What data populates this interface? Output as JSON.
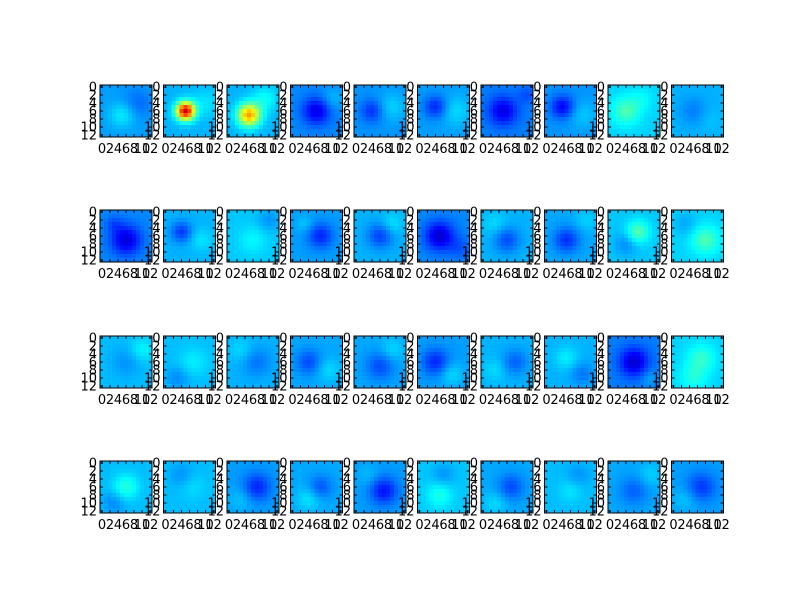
{
  "chart_data": {
    "type": "heatmap",
    "layout": {
      "rows": 4,
      "cols": 10
    },
    "colormap": "jet",
    "value_range": [
      0,
      1
    ],
    "image_shape": [
      13,
      13
    ],
    "x_ticks": [
      "0",
      "2",
      "4",
      "6",
      "8",
      "10",
      "12"
    ],
    "y_ticks": [
      "0",
      "2",
      "4",
      "6",
      "8",
      "10",
      "12"
    ],
    "grid": false,
    "tiles": [
      {
        "base": 0.28,
        "blobs": [
          [
            7,
            5,
            2.2,
            0.08
          ],
          [
            4,
            9,
            2.6,
            -0.05
          ]
        ]
      },
      {
        "base": 0.3,
        "blobs": [
          [
            6,
            5,
            1.6,
            0.62
          ],
          [
            4,
            10,
            2.5,
            0.05
          ]
        ]
      },
      {
        "base": 0.3,
        "blobs": [
          [
            7,
            5,
            2.0,
            0.42
          ],
          [
            3,
            9,
            2.2,
            0.08
          ]
        ]
      },
      {
        "base": 0.26,
        "blobs": [
          [
            6,
            6,
            2.4,
            -0.16
          ],
          [
            3,
            10,
            2.0,
            0.05
          ]
        ]
      },
      {
        "base": 0.27,
        "blobs": [
          [
            6,
            4,
            2.0,
            -0.1
          ],
          [
            5,
            9,
            2.5,
            0.06
          ]
        ]
      },
      {
        "base": 0.28,
        "blobs": [
          [
            5,
            4,
            2.0,
            -0.12
          ],
          [
            6,
            9,
            2.5,
            0.06
          ]
        ]
      },
      {
        "base": 0.25,
        "blobs": [
          [
            6,
            5,
            2.5,
            -0.15
          ],
          [
            2,
            11,
            1.5,
            -0.05
          ]
        ]
      },
      {
        "base": 0.27,
        "blobs": [
          [
            5,
            4,
            2.0,
            -0.15
          ],
          [
            7,
            9,
            2.5,
            0.05
          ]
        ]
      },
      {
        "base": 0.33,
        "blobs": [
          [
            6,
            4,
            2.5,
            0.12
          ],
          [
            3,
            8,
            2.0,
            0.04
          ]
        ]
      },
      {
        "base": 0.3,
        "blobs": [
          [
            6,
            5,
            2.5,
            -0.05
          ],
          [
            8,
            9,
            2.0,
            0.02
          ]
        ]
      },
      {
        "base": 0.26,
        "blobs": [
          [
            7,
            6,
            2.6,
            -0.17
          ],
          [
            3,
            3,
            1.5,
            -0.05
          ]
        ]
      },
      {
        "base": 0.3,
        "blobs": [
          [
            5,
            4,
            1.8,
            -0.12
          ],
          [
            7,
            9,
            2.0,
            0.05
          ]
        ]
      },
      {
        "base": 0.32,
        "blobs": [
          [
            7,
            6,
            2.5,
            0.05
          ],
          [
            2,
            10,
            2.0,
            -0.05
          ]
        ]
      },
      {
        "base": 0.28,
        "blobs": [
          [
            6,
            7,
            2.2,
            -0.12
          ],
          [
            3,
            3,
            1.5,
            0.04
          ]
        ]
      },
      {
        "base": 0.3,
        "blobs": [
          [
            6,
            6,
            2.2,
            -0.11
          ],
          [
            3,
            9,
            1.8,
            0.05
          ]
        ]
      },
      {
        "base": 0.26,
        "blobs": [
          [
            6,
            5,
            2.5,
            -0.18
          ],
          [
            9,
            10,
            2.0,
            -0.05
          ]
        ]
      },
      {
        "base": 0.3,
        "blobs": [
          [
            7,
            6,
            2.2,
            -0.1
          ],
          [
            3,
            3,
            2.0,
            0.04
          ]
        ]
      },
      {
        "base": 0.29,
        "blobs": [
          [
            7,
            5,
            2.2,
            -0.12
          ],
          [
            2,
            10,
            2.0,
            0.04
          ]
        ]
      },
      {
        "base": 0.32,
        "blobs": [
          [
            5,
            7,
            2.0,
            0.14
          ],
          [
            8,
            4,
            2.0,
            -0.06
          ]
        ]
      },
      {
        "base": 0.33,
        "blobs": [
          [
            7,
            8,
            2.5,
            0.12
          ],
          [
            3,
            3,
            2.0,
            -0.04
          ]
        ]
      },
      {
        "base": 0.31,
        "blobs": [
          [
            6,
            6,
            2.5,
            -0.04
          ],
          [
            3,
            10,
            2.0,
            0.06
          ]
        ]
      },
      {
        "base": 0.31,
        "blobs": [
          [
            6,
            7,
            2.5,
            0.05
          ],
          [
            10,
            3,
            2.0,
            -0.05
          ]
        ]
      },
      {
        "base": 0.3,
        "blobs": [
          [
            6,
            7,
            2.5,
            -0.06
          ],
          [
            3,
            3,
            2.0,
            0.04
          ]
        ]
      },
      {
        "base": 0.29,
        "blobs": [
          [
            6,
            4,
            2.2,
            -0.09
          ],
          [
            8,
            9,
            2.0,
            0.05
          ]
        ]
      },
      {
        "base": 0.29,
        "blobs": [
          [
            7,
            6,
            2.5,
            -0.09
          ],
          [
            3,
            9,
            2.0,
            0.05
          ]
        ]
      },
      {
        "base": 0.28,
        "blobs": [
          [
            6,
            4,
            2.3,
            -0.12
          ],
          [
            9,
            8,
            2.0,
            0.06
          ]
        ]
      },
      {
        "base": 0.3,
        "blobs": [
          [
            6,
            8,
            2.2,
            -0.08
          ],
          [
            8,
            3,
            2.0,
            0.04
          ]
        ]
      },
      {
        "base": 0.3,
        "blobs": [
          [
            5,
            5,
            2.0,
            0.06
          ],
          [
            9,
            9,
            2.0,
            -0.06
          ]
        ]
      },
      {
        "base": 0.25,
        "blobs": [
          [
            6,
            6,
            2.5,
            -0.17
          ],
          [
            10,
            10,
            1.5,
            0.04
          ]
        ]
      },
      {
        "base": 0.33,
        "blobs": [
          [
            5,
            7,
            2.5,
            0.09
          ],
          [
            10,
            5,
            2.5,
            0.07
          ]
        ]
      },
      {
        "base": 0.31,
        "blobs": [
          [
            6,
            6,
            2.2,
            0.1
          ],
          [
            10,
            3,
            2.0,
            -0.05
          ]
        ]
      },
      {
        "base": 0.31,
        "blobs": [
          [
            6,
            7,
            2.2,
            0.03
          ],
          [
            3,
            4,
            2.0,
            -0.04
          ]
        ]
      },
      {
        "base": 0.28,
        "blobs": [
          [
            6,
            7,
            2.4,
            -0.12
          ],
          [
            9,
            3,
            2.0,
            0.04
          ]
        ]
      },
      {
        "base": 0.29,
        "blobs": [
          [
            6,
            7,
            2.0,
            -0.08
          ],
          [
            9,
            4,
            2.0,
            0.06
          ]
        ]
      },
      {
        "base": 0.28,
        "blobs": [
          [
            7,
            7,
            2.4,
            -0.14
          ],
          [
            3,
            3,
            1.8,
            0.03
          ]
        ]
      },
      {
        "base": 0.32,
        "blobs": [
          [
            8,
            5,
            2.2,
            0.08
          ],
          [
            3,
            6,
            2.0,
            -0.05
          ]
        ]
      },
      {
        "base": 0.29,
        "blobs": [
          [
            6,
            7,
            2.3,
            -0.09
          ],
          [
            10,
            3,
            2.0,
            0.05
          ]
        ]
      },
      {
        "base": 0.31,
        "blobs": [
          [
            7,
            6,
            2.0,
            0.04
          ],
          [
            3,
            8,
            2.0,
            -0.04
          ]
        ]
      },
      {
        "base": 0.29,
        "blobs": [
          [
            7,
            6,
            2.5,
            -0.07
          ],
          [
            3,
            10,
            2.0,
            0.04
          ]
        ]
      },
      {
        "base": 0.28,
        "blobs": [
          [
            6,
            7,
            2.5,
            -0.1
          ],
          [
            9,
            3,
            2.0,
            0.04
          ]
        ]
      }
    ]
  }
}
